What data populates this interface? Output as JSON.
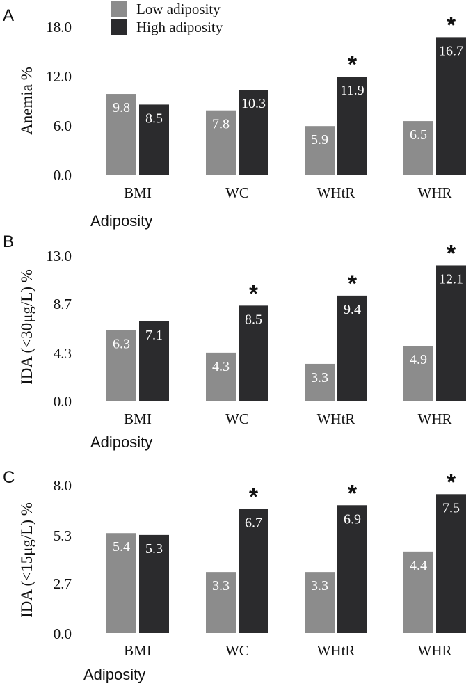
{
  "legend": {
    "items": [
      {
        "label": "Low adiposity",
        "color": "#8c8c8c"
      },
      {
        "label": "High adiposity",
        "color": "#2b2b2d"
      }
    ]
  },
  "chart_data": [
    {
      "type": "bar",
      "panel_label": "A",
      "categories": [
        "BMI",
        "WC",
        "WHtR",
        "WHR"
      ],
      "series": [
        {
          "name": "Low adiposity",
          "values": [
            9.8,
            7.8,
            5.9,
            6.5
          ]
        },
        {
          "name": "High adiposity",
          "values": [
            8.5,
            10.3,
            11.9,
            16.7
          ]
        }
      ],
      "value_labels": {
        "low": [
          "9.8",
          "7.8",
          "5.9",
          "6.5"
        ],
        "high": [
          "8.5",
          "10.3",
          "11.9",
          "16.7"
        ]
      },
      "significant": [
        false,
        false,
        true,
        true
      ],
      "significance_marker": "*",
      "yticks": [
        "0.0",
        "6.0",
        "12.0",
        "18.0"
      ],
      "ylim": [
        0,
        18
      ],
      "ylabel": "Anemia %",
      "xlabel": "Adiposity",
      "grid": false
    },
    {
      "type": "bar",
      "panel_label": "B",
      "categories": [
        "BMI",
        "WC",
        "WHtR",
        "WHR"
      ],
      "series": [
        {
          "name": "Low adiposity",
          "values": [
            6.3,
            4.3,
            3.3,
            4.9
          ]
        },
        {
          "name": "High adiposity",
          "values": [
            7.1,
            8.5,
            9.4,
            12.1
          ]
        }
      ],
      "value_labels": {
        "low": [
          "6.3",
          "4.3",
          "3.3",
          "4.9"
        ],
        "high": [
          "7.1",
          "8.5",
          "9.4",
          "12.1"
        ]
      },
      "significant": [
        false,
        true,
        true,
        true
      ],
      "significance_marker": "*",
      "yticks": [
        "0.0",
        "4.3",
        "8.7",
        "13.0"
      ],
      "ylim": [
        0,
        13
      ],
      "ylabel": "IDA (<30μg/L)  %",
      "xlabel": "Adiposity",
      "grid": false
    },
    {
      "type": "bar",
      "panel_label": "C",
      "categories": [
        "BMI",
        "WC",
        "WHtR",
        "WHR"
      ],
      "series": [
        {
          "name": "Low adiposity",
          "values": [
            5.4,
            3.3,
            3.3,
            4.4
          ]
        },
        {
          "name": "High adiposity",
          "values": [
            5.3,
            6.7,
            6.9,
            7.5
          ]
        }
      ],
      "value_labels": {
        "low": [
          "5.4",
          "3.3",
          "3.3",
          "4.4"
        ],
        "high": [
          "5.3",
          "6.7",
          "6.9",
          "7.5"
        ]
      },
      "significant": [
        false,
        true,
        true,
        true
      ],
      "significance_marker": "*",
      "yticks": [
        "0.0",
        "2.7",
        "5.3",
        "8.0"
      ],
      "ylim": [
        0,
        8
      ],
      "ylabel": "IDA (<15μg/L)  %",
      "xlabel": "Adiposity",
      "grid": false
    }
  ]
}
